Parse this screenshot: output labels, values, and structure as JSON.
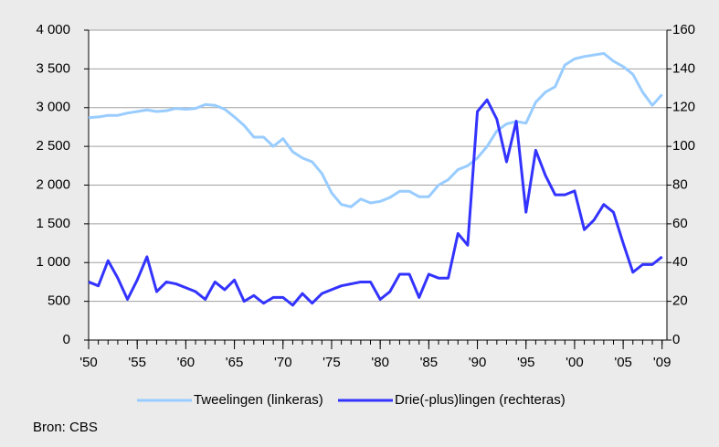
{
  "chart_data": {
    "type": "line",
    "x": [
      1950,
      1951,
      1952,
      1953,
      1954,
      1955,
      1956,
      1957,
      1958,
      1959,
      1960,
      1961,
      1962,
      1963,
      1964,
      1965,
      1966,
      1967,
      1968,
      1969,
      1970,
      1971,
      1972,
      1973,
      1974,
      1975,
      1976,
      1977,
      1978,
      1979,
      1980,
      1981,
      1982,
      1983,
      1984,
      1985,
      1986,
      1987,
      1988,
      1989,
      1990,
      1991,
      1992,
      1993,
      1994,
      1995,
      1996,
      1997,
      1998,
      1999,
      2000,
      2001,
      2002,
      2003,
      2004,
      2005,
      2006,
      2007,
      2008,
      2009
    ],
    "series": [
      {
        "name": "Tweelingen (linkeras)",
        "color": "#99ccff",
        "values": [
          2870,
          2880,
          2900,
          2900,
          2930,
          2950,
          2970,
          2950,
          2960,
          2990,
          2980,
          2990,
          3040,
          3030,
          2980,
          2880,
          2770,
          2620,
          2620,
          2500,
          2600,
          2430,
          2350,
          2300,
          2150,
          1900,
          1750,
          1720,
          1820,
          1770,
          1790,
          1840,
          1920,
          1920,
          1850,
          1850,
          2000,
          2070,
          2200,
          2250,
          2350,
          2500,
          2700,
          2790,
          2820,
          2800,
          3070,
          3200,
          3270,
          3550,
          3630,
          3660,
          3680,
          3700,
          3600,
          3530,
          3430,
          3200,
          3030,
          3170
        ]
      },
      {
        "name": "Drie(-plus)lingen (rechteras)",
        "color": "#3333ff",
        "axis": "y2",
        "values": [
          30,
          28,
          41,
          32,
          21,
          31,
          43,
          25,
          30,
          29,
          27,
          25,
          21,
          30,
          26,
          31,
          20,
          23,
          19,
          22,
          22,
          18,
          24,
          19,
          24,
          26,
          28,
          29,
          30,
          30,
          21,
          25,
          34,
          34,
          22,
          34,
          32,
          32,
          55,
          49,
          118,
          124,
          114,
          92,
          113,
          66,
          98,
          85,
          75,
          75,
          77,
          57,
          62,
          70,
          66,
          50,
          35,
          39,
          39,
          43
        ]
      }
    ],
    "xlim": [
      1950,
      2009.5
    ],
    "xticks": [
      {
        "value": 1950,
        "label": "'50"
      },
      {
        "value": 1955,
        "label": "'55"
      },
      {
        "value": 1960,
        "label": "'60"
      },
      {
        "value": 1965,
        "label": "'65"
      },
      {
        "value": 1970,
        "label": "'70"
      },
      {
        "value": 1975,
        "label": "'75"
      },
      {
        "value": 1980,
        "label": "'80"
      },
      {
        "value": 1985,
        "label": "'85"
      },
      {
        "value": 1990,
        "label": "'90"
      },
      {
        "value": 1995,
        "label": "'95"
      },
      {
        "value": 2000,
        "label": "'00"
      },
      {
        "value": 2005,
        "label": "'05"
      },
      {
        "value": 2009,
        "label": "'09"
      }
    ],
    "ylim": [
      0,
      4000
    ],
    "yticks": [
      0,
      500,
      {
        "value": 1000,
        "label": "1 000"
      },
      {
        "value": 1500,
        "label": "1 500"
      },
      {
        "value": 2000,
        "label": "2 000"
      },
      {
        "value": 2500,
        "label": "2 500"
      },
      {
        "value": 3000,
        "label": "3 000"
      },
      {
        "value": 3500,
        "label": "3 500"
      },
      {
        "value": 4000,
        "label": "4 000"
      }
    ],
    "y2lim": [
      0,
      160
    ],
    "y2ticks": [
      0,
      20,
      40,
      60,
      80,
      100,
      120,
      140,
      160
    ],
    "grid": true,
    "legend": "bottom",
    "source": "Bron: CBS"
  }
}
